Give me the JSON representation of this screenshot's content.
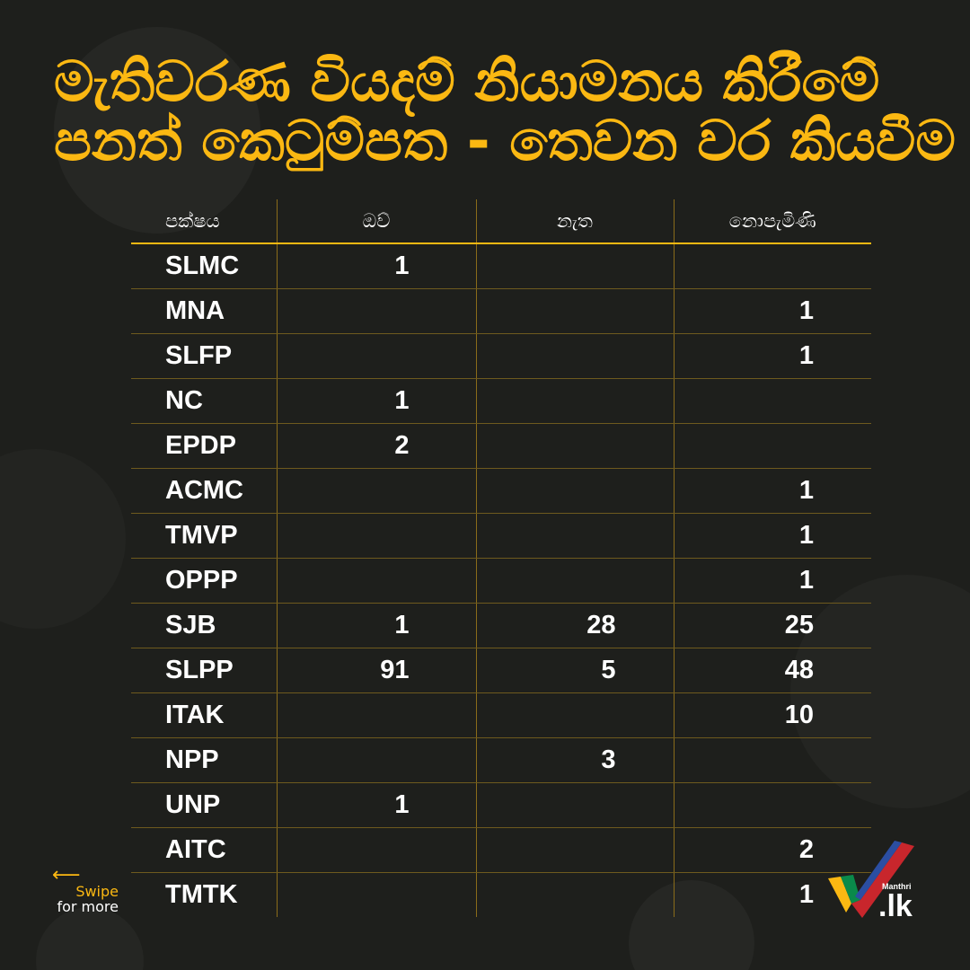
{
  "title": {
    "line1": "මැතිවරණ වියදම් නියාමනය කිරීමේ",
    "line2": "පනත් කෙටුම්පත - තෙවන වර කියවීම"
  },
  "table": {
    "headers": [
      "පක්ෂය",
      "ඔව්",
      "නැත",
      "නොපැමිණි"
    ],
    "rows": [
      {
        "party": "SLMC",
        "yes": "1",
        "no": "",
        "absent": ""
      },
      {
        "party": "MNA",
        "yes": "",
        "no": "",
        "absent": "1"
      },
      {
        "party": "SLFP",
        "yes": "",
        "no": "",
        "absent": "1"
      },
      {
        "party": "NC",
        "yes": "1",
        "no": "",
        "absent": ""
      },
      {
        "party": "EPDP",
        "yes": "2",
        "no": "",
        "absent": ""
      },
      {
        "party": "ACMC",
        "yes": "",
        "no": "",
        "absent": "1"
      },
      {
        "party": "TMVP",
        "yes": "",
        "no": "",
        "absent": "1"
      },
      {
        "party": "OPPP",
        "yes": "",
        "no": "",
        "absent": "1"
      },
      {
        "party": "SJB",
        "yes": "1",
        "no": "28",
        "absent": "25"
      },
      {
        "party": "SLPP",
        "yes": "91",
        "no": "5",
        "absent": "48"
      },
      {
        "party": "ITAK",
        "yes": "",
        "no": "",
        "absent": "10"
      },
      {
        "party": "NPP",
        "yes": "",
        "no": "3",
        "absent": ""
      },
      {
        "party": "UNP",
        "yes": "1",
        "no": "",
        "absent": ""
      },
      {
        "party": "AITC",
        "yes": "",
        "no": "",
        "absent": "2"
      },
      {
        "party": "TMTK",
        "yes": "",
        "no": "",
        "absent": "1"
      }
    ]
  },
  "swipe": {
    "arrow": "⟵",
    "line1": "Swipe",
    "line2": "for more"
  },
  "logo": {
    "small": "Manthri",
    "large": ".lk",
    "icon": "checkmark-icon"
  },
  "colors": {
    "accent": "#fbb812",
    "background": "#1e1f1c",
    "text": "#ffffff"
  }
}
